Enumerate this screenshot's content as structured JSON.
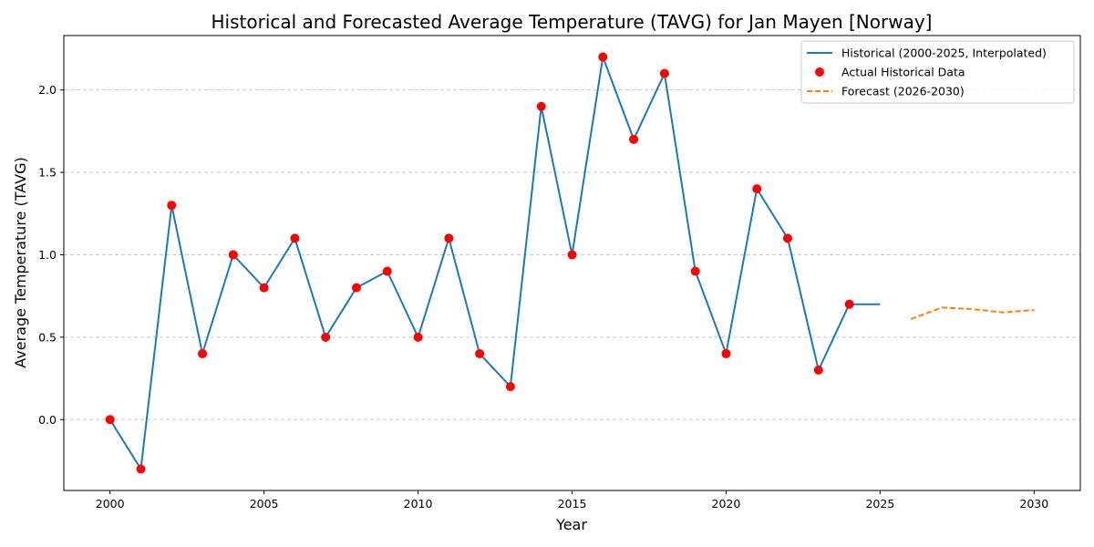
{
  "chart_data": {
    "type": "line",
    "title": "Historical and Forecasted Average Temperature (TAVG) for Jan Mayen [Norway]",
    "xlabel": "Year",
    "ylabel": "Average Temperature (TAVG)",
    "xlim": [
      1998.5,
      2031.5
    ],
    "ylim": [
      -0.43,
      2.33
    ],
    "xticks": [
      2000,
      2005,
      2010,
      2015,
      2020,
      2025,
      2030
    ],
    "yticks": [
      0.0,
      0.5,
      1.0,
      1.5,
      2.0
    ],
    "ytick_labels": [
      "0.0",
      "0.5",
      "1.0",
      "1.5",
      "2.0"
    ],
    "grid": "horizontal dashed",
    "legend_position": "upper right",
    "series": [
      {
        "name": "Historical (2000-2025, Interpolated)",
        "style": "solid line",
        "color": "#1f77b4",
        "x": [
          2000,
          2001,
          2002,
          2003,
          2004,
          2005,
          2006,
          2007,
          2008,
          2009,
          2010,
          2011,
          2012,
          2013,
          2014,
          2015,
          2016,
          2017,
          2018,
          2019,
          2020,
          2021,
          2022,
          2023,
          2024,
          2025
        ],
        "y": [
          0.0,
          -0.3,
          1.3,
          0.4,
          1.0,
          0.8,
          1.1,
          0.5,
          0.8,
          0.9,
          0.5,
          1.1,
          0.4,
          0.2,
          1.9,
          1.0,
          2.2,
          1.7,
          2.1,
          0.9,
          0.4,
          1.4,
          1.1,
          0.3,
          0.7,
          0.7
        ]
      },
      {
        "name": "Actual Historical Data",
        "style": "markers",
        "color": "#ff0000",
        "x": [
          2000,
          2001,
          2002,
          2003,
          2004,
          2005,
          2006,
          2007,
          2008,
          2009,
          2010,
          2011,
          2012,
          2013,
          2014,
          2015,
          2016,
          2017,
          2018,
          2019,
          2020,
          2021,
          2022,
          2023,
          2024
        ],
        "y": [
          0.0,
          -0.3,
          1.3,
          0.4,
          1.0,
          0.8,
          1.1,
          0.5,
          0.8,
          0.9,
          0.5,
          1.1,
          0.4,
          0.2,
          1.9,
          1.0,
          2.2,
          1.7,
          2.1,
          0.9,
          0.4,
          1.4,
          1.1,
          0.3,
          0.7
        ]
      },
      {
        "name": "Forecast (2026-2030)",
        "style": "dashed line",
        "color": "#ff7f0e",
        "x": [
          2026,
          2027,
          2028,
          2029,
          2030
        ],
        "y": [
          0.61,
          0.68,
          0.67,
          0.65,
          0.665
        ]
      }
    ]
  }
}
